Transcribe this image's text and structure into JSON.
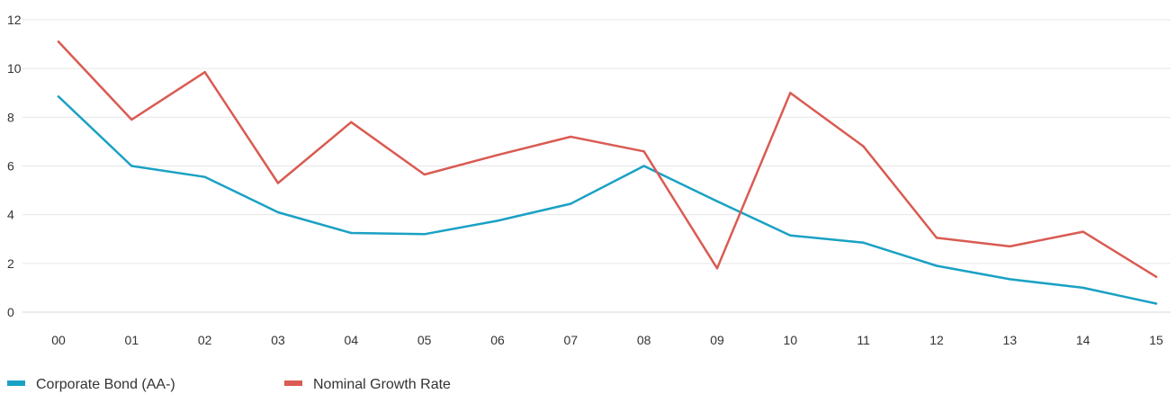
{
  "chart_data": {
    "type": "line",
    "title": "",
    "xlabel": "",
    "ylabel": "",
    "categories": [
      "00",
      "01",
      "02",
      "03",
      "04",
      "05",
      "06",
      "07",
      "08",
      "09",
      "10",
      "11",
      "12",
      "13",
      "14",
      "15"
    ],
    "ylim": [
      0,
      12
    ],
    "yticks": [
      0,
      2,
      4,
      6,
      8,
      10,
      12
    ],
    "grid": true,
    "legend_position": "bottom-left",
    "series": [
      {
        "name": "Corporate Bond (AA-)",
        "color": "#1aa1c4",
        "values": [
          8.85,
          6.0,
          5.55,
          4.1,
          3.25,
          3.2,
          3.75,
          4.45,
          6.0,
          4.55,
          3.15,
          2.85,
          1.9,
          1.35,
          1.0,
          0.35
        ]
      },
      {
        "name": "Nominal Growth Rate",
        "color": "#d95b52",
        "values": [
          11.1,
          7.9,
          9.85,
          5.3,
          7.8,
          5.65,
          6.45,
          7.2,
          6.6,
          1.8,
          9.0,
          6.8,
          3.05,
          2.7,
          3.3,
          1.45
        ]
      }
    ]
  }
}
